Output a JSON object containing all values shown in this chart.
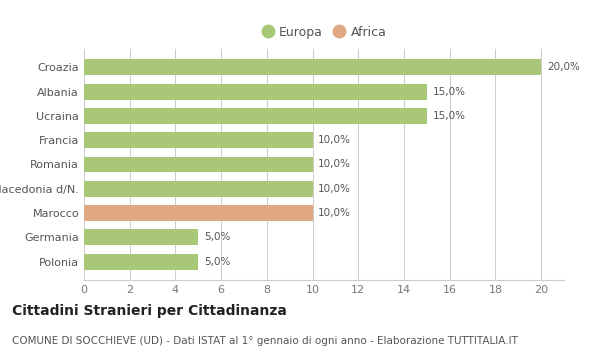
{
  "categories": [
    "Polonia",
    "Germania",
    "Marocco",
    "Macedonia d/N.",
    "Romania",
    "Francia",
    "Ucraina",
    "Albania",
    "Croazia"
  ],
  "values": [
    5.0,
    5.0,
    10.0,
    10.0,
    10.0,
    10.0,
    15.0,
    15.0,
    20.0
  ],
  "colors": [
    "#a8c878",
    "#a8c878",
    "#e0a882",
    "#a8c878",
    "#a8c878",
    "#a8c878",
    "#a8c878",
    "#a8c878",
    "#a8c878"
  ],
  "labels": [
    "5,0%",
    "5,0%",
    "10,0%",
    "10,0%",
    "10,0%",
    "10,0%",
    "15,0%",
    "15,0%",
    "20,0%"
  ],
  "europa_color": "#a8c878",
  "africa_color": "#e0a882",
  "title": "Cittadini Stranieri per Cittadinanza",
  "subtitle": "COMUNE DI SOCCHIEVE (UD) - Dati ISTAT al 1° gennaio di ogni anno - Elaborazione TUTTITALIA.IT",
  "xlim": [
    0,
    21
  ],
  "xticks": [
    0,
    2,
    4,
    6,
    8,
    10,
    12,
    14,
    16,
    18,
    20
  ],
  "background_color": "#ffffff",
  "grid_color": "#cccccc",
  "bar_height": 0.65,
  "title_fontsize": 10,
  "subtitle_fontsize": 7.5,
  "label_fontsize": 7.5,
  "tick_fontsize": 8,
  "legend_fontsize": 9
}
